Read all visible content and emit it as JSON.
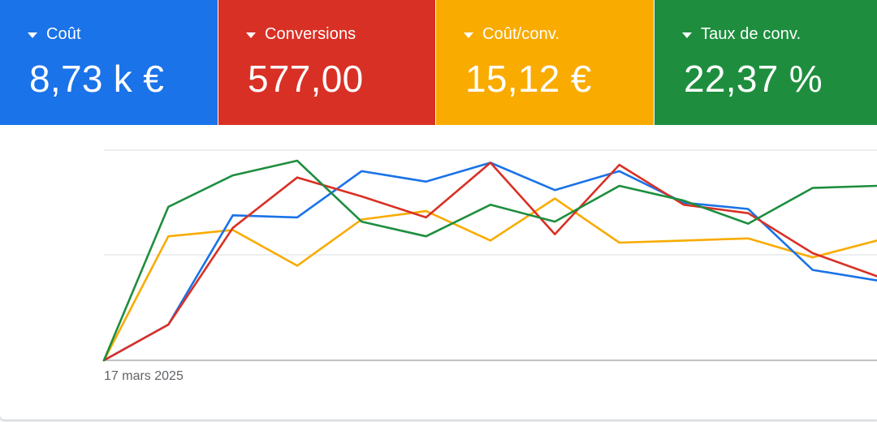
{
  "metrics": [
    {
      "label": "Coût",
      "value": "8,73 k €",
      "color": "#1a73e8"
    },
    {
      "label": "Conversions",
      "value": "577,00",
      "color": "#d93025"
    },
    {
      "label": "Coût/conv.",
      "value": "15,12 €",
      "color": "#f9ab00"
    },
    {
      "label": "Taux de conv.",
      "value": "22,37 %",
      "color": "#1e8e3e"
    }
  ],
  "chart": {
    "start_date_label": "17 mars 2025"
  },
  "chart_data": {
    "type": "line",
    "grid": true,
    "x_tick_labels": [
      "17 mars 2025"
    ],
    "ylim": [
      0,
      100
    ],
    "series": [
      {
        "name": "Coût",
        "color": "#1a73e8",
        "values": [
          0,
          17,
          69,
          68,
          90,
          85,
          94,
          81,
          90,
          75,
          72,
          43,
          38
        ]
      },
      {
        "name": "Conversions",
        "color": "#d93025",
        "values": [
          0,
          17,
          63,
          87,
          78,
          68,
          94,
          60,
          93,
          74,
          70,
          51,
          40
        ]
      },
      {
        "name": "Coût/conv.",
        "color": "#f9ab00",
        "values": [
          0,
          59,
          62,
          45,
          67,
          71,
          57,
          77,
          56,
          57,
          58,
          49,
          57
        ]
      },
      {
        "name": "Taux de conv.",
        "color": "#1e8e3e",
        "values": [
          0,
          73,
          88,
          95,
          66,
          59,
          74,
          66,
          83,
          76,
          65,
          82,
          83
        ]
      }
    ]
  }
}
